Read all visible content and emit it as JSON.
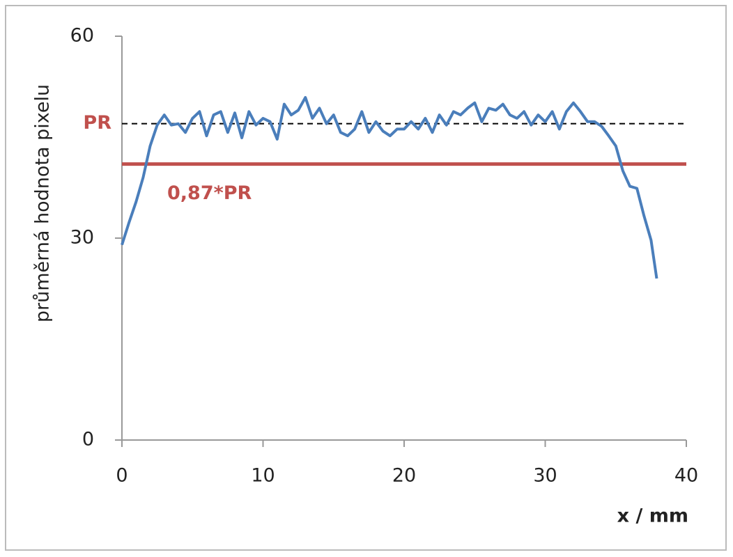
{
  "chart_data": {
    "type": "line",
    "y_label": "průměrná hodnota pixelu",
    "x_label": "x / mm",
    "x": [
      0,
      0.5,
      1,
      1.5,
      2,
      2.5,
      3,
      3.5,
      4,
      4.5,
      5,
      5.5,
      6,
      6.5,
      7,
      7.5,
      8,
      8.5,
      9,
      9.5,
      10,
      10.5,
      11,
      11.5,
      12,
      12.5,
      13,
      13.5,
      14,
      14.5,
      15,
      15.5,
      16,
      16.5,
      17,
      17.5,
      18,
      18.5,
      19,
      19.5,
      20,
      20.5,
      21,
      21.5,
      22,
      22.5,
      23,
      23.5,
      24,
      24.5,
      25,
      25.5,
      26,
      26.5,
      27,
      27.5,
      28,
      28.5,
      29,
      29.5,
      30,
      30.5,
      31,
      31.5,
      32,
      32.5,
      33,
      33.5,
      34,
      34.5,
      35,
      35.5,
      36,
      36.5,
      37,
      37.5,
      37.9
    ],
    "series": [
      {
        "color": "#4a7ebb",
        "values": [
          29.0,
          32.3,
          35.4,
          39.0,
          43.7,
          46.8,
          48.3,
          46.8,
          47.0,
          45.7,
          47.8,
          48.8,
          45.2,
          48.3,
          48.8,
          45.7,
          48.6,
          44.9,
          48.8,
          46.8,
          47.8,
          47.3,
          44.7,
          49.9,
          48.3,
          49.0,
          50.9,
          47.8,
          49.3,
          47.0,
          48.3,
          45.7,
          45.2,
          46.2,
          48.8,
          45.7,
          47.3,
          45.9,
          45.2,
          46.2,
          46.2,
          47.3,
          46.2,
          47.8,
          45.7,
          48.3,
          46.8,
          48.8,
          48.3,
          49.3,
          50.1,
          47.3,
          49.3,
          49.0,
          49.9,
          48.3,
          47.8,
          48.8,
          46.8,
          48.3,
          47.3,
          48.8,
          46.2,
          48.8,
          50.1,
          48.8,
          47.3,
          47.3,
          46.6,
          45.2,
          43.7,
          40.0,
          37.7,
          37.4,
          33.3,
          29.7,
          24.0
        ]
      }
    ],
    "reference_lines": [
      {
        "label": "PR",
        "value": 47,
        "color": "#000000",
        "style": "dashed",
        "label_color": "#c0504d"
      },
      {
        "label": "0,87*PR",
        "value": 41,
        "color": "#c0504d",
        "style": "solid",
        "label_color": "#c0504d"
      }
    ],
    "xlim": [
      0,
      40
    ],
    "xticks": [
      0,
      10,
      20,
      30,
      40
    ],
    "ylim": [
      0,
      60
    ],
    "yticks": [
      0,
      30,
      60
    ],
    "grid": false
  }
}
